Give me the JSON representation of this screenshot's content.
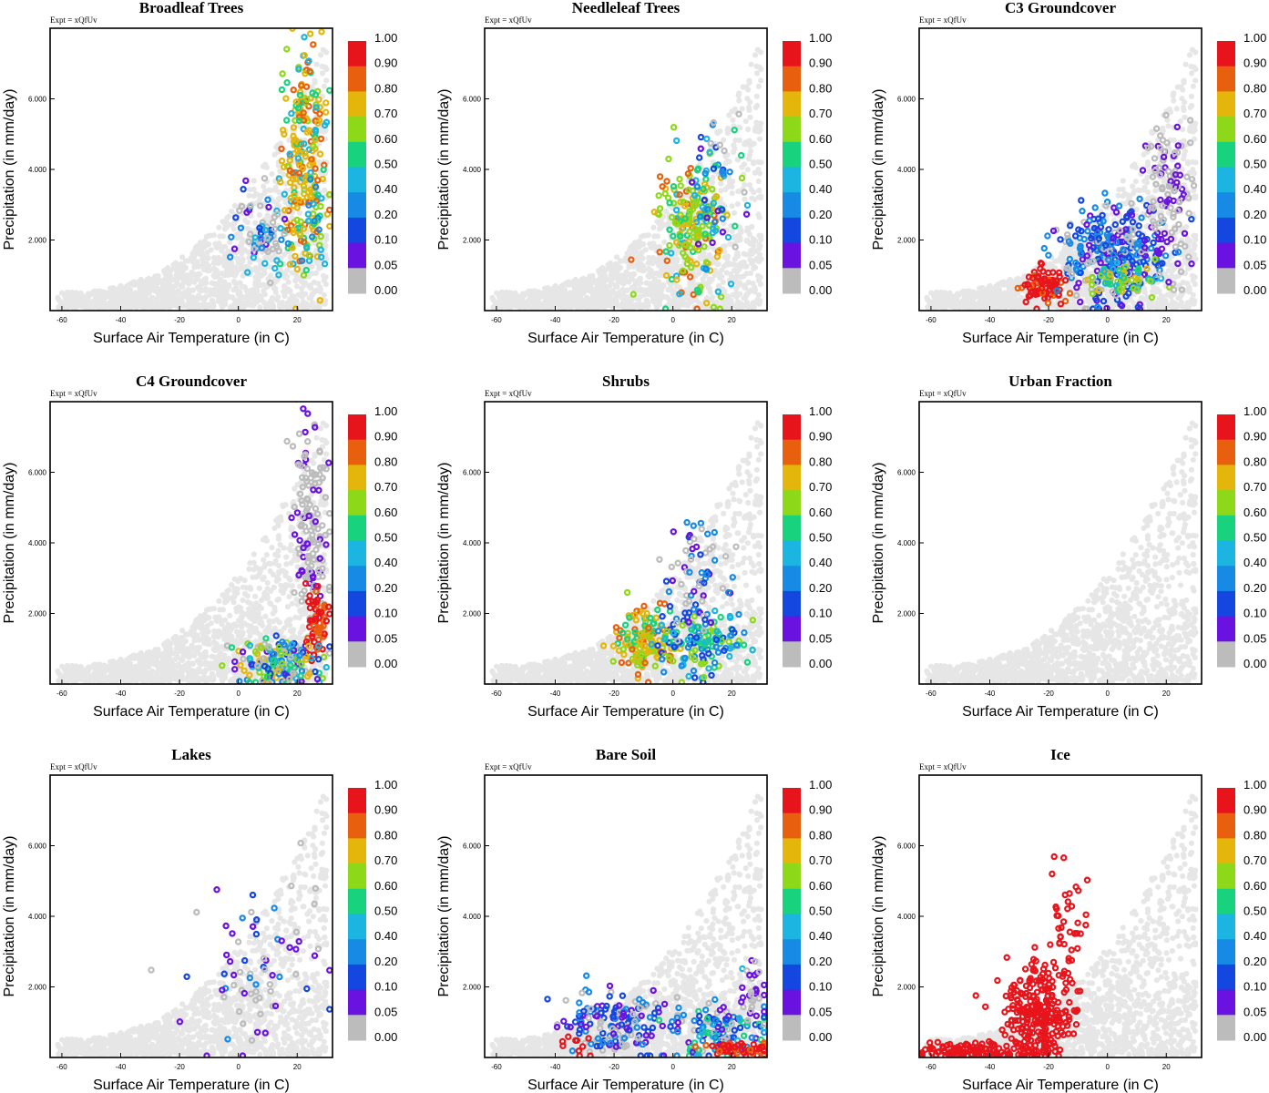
{
  "figure": {
    "expt_label": "Expt = xQfUv",
    "xlabel": "Surface Air Temperature (in C)",
    "ylabel": "Precipitation (in mm/day)"
  },
  "colorbar": {
    "labels": [
      "1.00",
      "0.90",
      "0.80",
      "0.70",
      "0.60",
      "0.50",
      "0.40",
      "0.20",
      "0.10",
      "0.05",
      "0.00"
    ],
    "colors": [
      "#e8141c",
      "#e8600e",
      "#e4b60c",
      "#8ed81a",
      "#18d27e",
      "#1cb4e0",
      "#178ae6",
      "#1446e0",
      "#6a12e0",
      "#bcbcbc"
    ],
    "background_color": "#e6e6e6"
  },
  "chart_data": [
    {
      "type": "scatter",
      "title": "Broadleaf Trees",
      "xlabel": "Surface Air Temperature (in C)",
      "ylabel": "Precipitation (in mm/day)",
      "x_ticks": [
        -60,
        -40,
        -20,
        0,
        20
      ],
      "x_tick_labels": [
        "-60",
        "-40",
        "-20",
        "0",
        "20"
      ],
      "y_ticks": [
        2,
        4,
        6
      ],
      "y_tick_labels": [
        "2.000",
        "4.000",
        "6.000"
      ],
      "xlim": [
        -64,
        32
      ],
      "ylim": [
        0,
        8.0
      ],
      "highlight": [
        {
          "cx": 22,
          "cy": 4.2,
          "sx": 4,
          "sy": 1.6,
          "n": 240,
          "levels": [
            1,
            1,
            2,
            2,
            2,
            2,
            2,
            3,
            4,
            5
          ]
        },
        {
          "cx": 8,
          "cy": 2.2,
          "sx": 5,
          "sy": 0.6,
          "n": 70,
          "levels": [
            6,
            7,
            8,
            9,
            9,
            5
          ]
        },
        {
          "cx": 26,
          "cy": 2.6,
          "sx": 3,
          "sy": 0.7,
          "n": 30,
          "levels": [
            3,
            4,
            5,
            6
          ]
        }
      ]
    },
    {
      "type": "scatter",
      "title": "Needleleaf Trees",
      "xlabel": "Surface Air Temperature (in C)",
      "ylabel": "Precipitation (in mm/day)",
      "x_ticks": [
        -60,
        -40,
        -20,
        0,
        20
      ],
      "x_tick_labels": [
        "-60",
        "-40",
        "-20",
        "0",
        "20"
      ],
      "y_ticks": [
        2,
        4,
        6
      ],
      "y_tick_labels": [
        "2.000",
        "4.000",
        "6.000"
      ],
      "xlim": [
        -64,
        32
      ],
      "ylim": [
        0,
        8.0
      ],
      "highlight": [
        {
          "cx": 6,
          "cy": 2.4,
          "sx": 6,
          "sy": 1.0,
          "n": 200,
          "levels": [
            3,
            3,
            3,
            2,
            4,
            5,
            1
          ]
        },
        {
          "cx": 14,
          "cy": 3.6,
          "sx": 5,
          "sy": 1.1,
          "n": 50,
          "levels": [
            4,
            5,
            6,
            7,
            8,
            9
          ]
        }
      ]
    },
    {
      "type": "scatter",
      "title": "C3 Groundcover",
      "xlabel": "Surface Air Temperature (in C)",
      "ylabel": "Precipitation (in mm/day)",
      "x_ticks": [
        -60,
        -40,
        -20,
        0,
        20
      ],
      "x_tick_labels": [
        "-60",
        "-40",
        "-20",
        "0",
        "20"
      ],
      "y_ticks": [
        2,
        4,
        6
      ],
      "y_tick_labels": [
        "2.000",
        "4.000",
        "6.000"
      ],
      "xlim": [
        -64,
        32
      ],
      "ylim": [
        0,
        8.0
      ],
      "highlight": [
        {
          "cx": -21,
          "cy": 0.7,
          "sx": 4,
          "sy": 0.25,
          "n": 90,
          "levels": [
            0,
            0,
            0,
            1
          ]
        },
        {
          "cx": 2,
          "cy": 1.6,
          "sx": 9,
          "sy": 0.7,
          "n": 330,
          "levels": [
            7,
            7,
            8,
            6,
            6,
            9
          ]
        },
        {
          "cx": 6,
          "cy": 0.9,
          "sx": 6,
          "sy": 0.25,
          "n": 60,
          "levels": [
            2,
            3,
            4,
            5
          ]
        },
        {
          "cx": 21,
          "cy": 3.4,
          "sx": 4,
          "sy": 1.0,
          "n": 110,
          "levels": [
            9,
            9,
            8
          ]
        }
      ]
    },
    {
      "type": "scatter",
      "title": "C4 Groundcover",
      "xlabel": "Surface Air Temperature (in C)",
      "ylabel": "Precipitation (in mm/day)",
      "x_ticks": [
        -60,
        -40,
        -20,
        0,
        20
      ],
      "x_tick_labels": [
        "-60",
        "-40",
        "-20",
        "0",
        "20"
      ],
      "y_ticks": [
        2,
        4,
        6
      ],
      "y_tick_labels": [
        "2.000",
        "4.000",
        "6.000"
      ],
      "xlim": [
        -64,
        32
      ],
      "ylim": [
        0,
        8.0
      ],
      "highlight": [
        {
          "cx": 25,
          "cy": 4.6,
          "sx": 3,
          "sy": 1.6,
          "n": 150,
          "levels": [
            9,
            9,
            9,
            8
          ]
        },
        {
          "cx": 27,
          "cy": 1.6,
          "sx": 2,
          "sy": 0.5,
          "n": 60,
          "levels": [
            0,
            0,
            1
          ]
        },
        {
          "cx": 14,
          "cy": 0.6,
          "sx": 8,
          "sy": 0.4,
          "n": 180,
          "levels": [
            2,
            3,
            4,
            5,
            6,
            7,
            8,
            9
          ]
        }
      ]
    },
    {
      "type": "scatter",
      "title": "Shrubs",
      "xlabel": "Surface Air Temperature (in C)",
      "ylabel": "Precipitation (in mm/day)",
      "x_ticks": [
        -60,
        -40,
        -20,
        0,
        20
      ],
      "x_tick_labels": [
        "-60",
        "-40",
        "-20",
        "0",
        "20"
      ],
      "y_ticks": [
        2,
        4,
        6
      ],
      "y_tick_labels": [
        "2.000",
        "4.000",
        "6.000"
      ],
      "xlim": [
        -64,
        32
      ],
      "ylim": [
        0,
        8.0
      ],
      "highlight": [
        {
          "cx": -10,
          "cy": 1.3,
          "sx": 5,
          "sy": 0.45,
          "n": 140,
          "levels": [
            2,
            2,
            3,
            1,
            4
          ]
        },
        {
          "cx": 10,
          "cy": 1.2,
          "sx": 8,
          "sy": 0.5,
          "n": 150,
          "levels": [
            3,
            4,
            5,
            6,
            7
          ]
        },
        {
          "cx": 8,
          "cy": 3.1,
          "sx": 5,
          "sy": 0.8,
          "n": 70,
          "levels": [
            7,
            8,
            9,
            6
          ]
        }
      ]
    },
    {
      "type": "scatter",
      "title": "Urban Fraction",
      "xlabel": "Surface Air Temperature (in C)",
      "ylabel": "Precipitation (in mm/day)",
      "x_ticks": [
        -60,
        -40,
        -20,
        0,
        20
      ],
      "x_tick_labels": [
        "-60",
        "-40",
        "-20",
        "0",
        "20"
      ],
      "y_ticks": [
        2,
        4,
        6
      ],
      "y_tick_labels": [
        "2.000",
        "4.000",
        "6.000"
      ],
      "xlim": [
        -64,
        32
      ],
      "ylim": [
        0,
        8.0
      ],
      "highlight": []
    },
    {
      "type": "scatter",
      "title": "Lakes",
      "xlabel": "Surface Air Temperature (in C)",
      "ylabel": "Precipitation (in mm/day)",
      "x_ticks": [
        -60,
        -40,
        -20,
        0,
        20
      ],
      "x_tick_labels": [
        "-60",
        "-40",
        "-20",
        "0",
        "20"
      ],
      "y_ticks": [
        2,
        4,
        6
      ],
      "y_tick_labels": [
        "2.000",
        "4.000",
        "6.000"
      ],
      "xlim": [
        -64,
        32
      ],
      "ylim": [
        0,
        8.0
      ],
      "highlight": [
        {
          "cx": 8,
          "cy": 2.6,
          "sx": 12,
          "sy": 1.2,
          "n": 70,
          "levels": [
            8,
            9,
            9,
            7,
            6
          ]
        }
      ]
    },
    {
      "type": "scatter",
      "title": "Bare Soil",
      "xlabel": "Surface Air Temperature (in C)",
      "ylabel": "Precipitation (in mm/day)",
      "x_ticks": [
        -60,
        -40,
        -20,
        0,
        20
      ],
      "x_tick_labels": [
        "-60",
        "-40",
        "-20",
        "0",
        "20"
      ],
      "y_ticks": [
        2,
        4,
        6
      ],
      "y_tick_labels": [
        "2.000",
        "4.000",
        "6.000"
      ],
      "xlim": [
        -64,
        32
      ],
      "ylim": [
        0,
        8.0
      ],
      "highlight": [
        {
          "cx": -20,
          "cy": 1.0,
          "sx": 8,
          "sy": 0.5,
          "n": 160,
          "levels": [
            8,
            9,
            7,
            6
          ]
        },
        {
          "cx": 14,
          "cy": 0.7,
          "sx": 8,
          "sy": 0.4,
          "n": 140,
          "levels": [
            5,
            6,
            7,
            8,
            9,
            4
          ]
        },
        {
          "cx": 22,
          "cy": 0.25,
          "sx": 6,
          "sy": 0.12,
          "n": 60,
          "levels": [
            0,
            1,
            0
          ]
        },
        {
          "cx": -34,
          "cy": 0.3,
          "sx": 3,
          "sy": 0.15,
          "n": 10,
          "levels": [
            0
          ]
        },
        {
          "cx": 27,
          "cy": 1.8,
          "sx": 2,
          "sy": 0.5,
          "n": 30,
          "levels": [
            8,
            9
          ]
        }
      ]
    },
    {
      "type": "scatter",
      "title": "Ice",
      "xlabel": "Surface Air Temperature (in C)",
      "ylabel": "Precipitation (in mm/day)",
      "x_ticks": [
        -60,
        -40,
        -20,
        0,
        20
      ],
      "x_tick_labels": [
        "-60",
        "-40",
        "-20",
        "0",
        "20"
      ],
      "y_ticks": [
        2,
        4,
        6
      ],
      "y_tick_labels": [
        "2.000",
        "4.000",
        "6.000"
      ],
      "xlim": [
        -64,
        32
      ],
      "ylim": [
        0,
        8.0
      ],
      "highlight": [
        {
          "cx": -24,
          "cy": 1.2,
          "sx": 6,
          "sy": 0.7,
          "n": 250,
          "levels": [
            0
          ]
        },
        {
          "cx": -45,
          "cy": 0.2,
          "sx": 10,
          "sy": 0.12,
          "n": 110,
          "levels": [
            0
          ]
        },
        {
          "cx": -14,
          "cy": 3.4,
          "sx": 4,
          "sy": 1.1,
          "n": 50,
          "levels": [
            0
          ]
        }
      ]
    }
  ]
}
